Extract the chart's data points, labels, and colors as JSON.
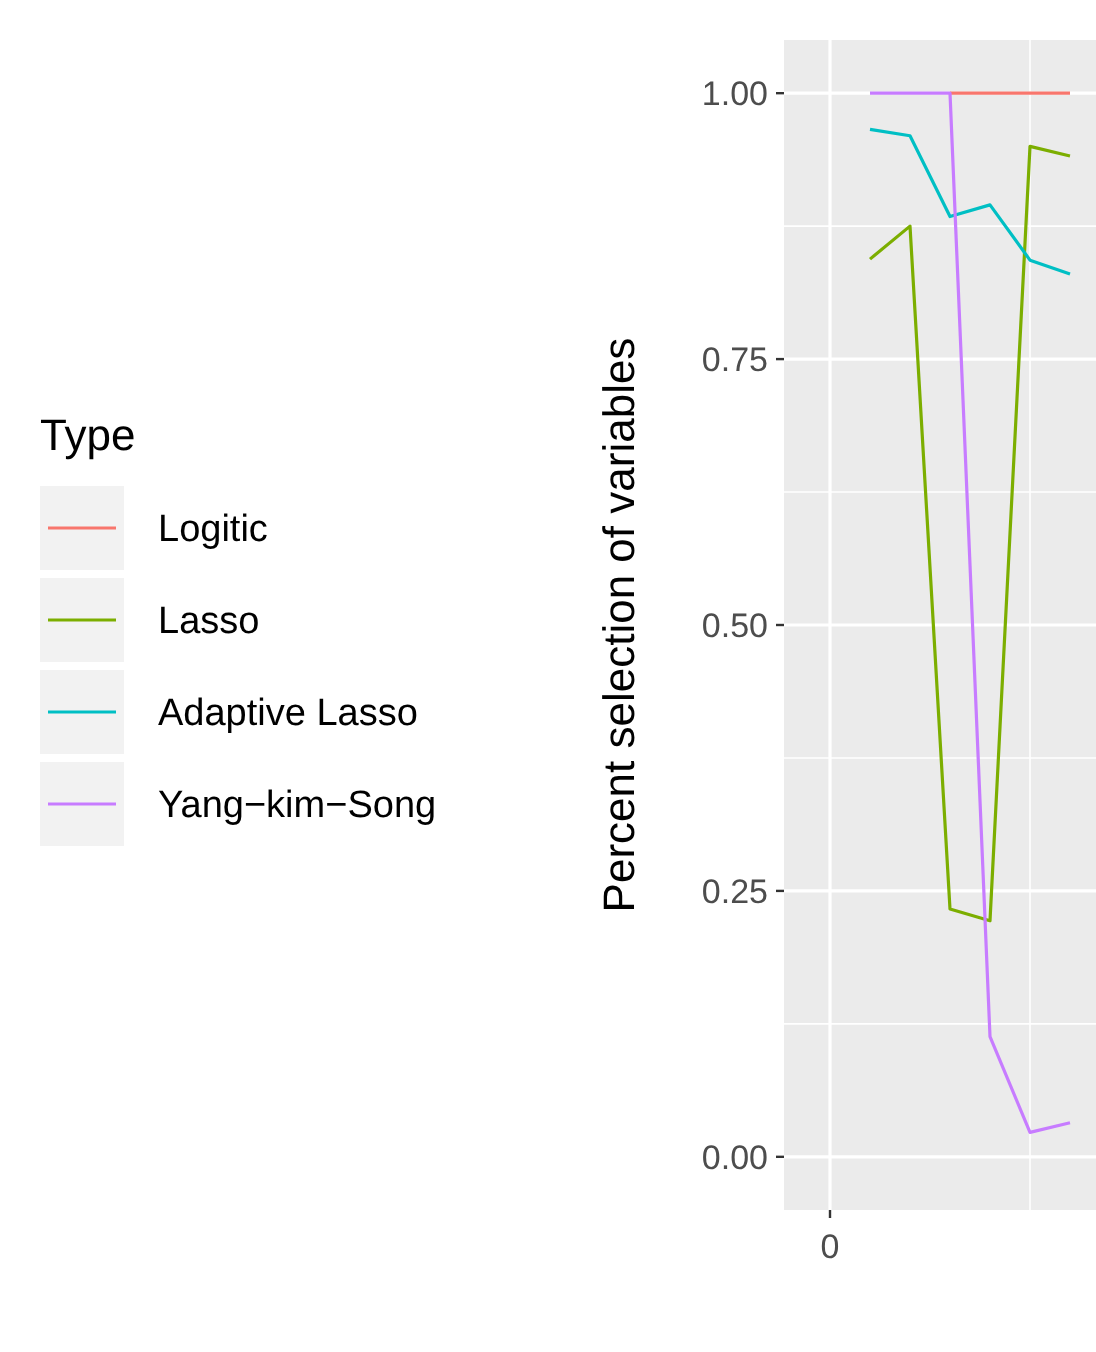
{
  "chart_data": {
    "type": "line",
    "ylabel": "Percent selection of variables",
    "legend_title": "Type",
    "categories": [
      null,
      null,
      null,
      null,
      null,
      null
    ],
    "annotations": [
      "0"
    ],
    "series": [
      {
        "name": "Logitic",
        "color": "#f8766d",
        "values": [
          null,
          null,
          1,
          1,
          1,
          1
        ]
      },
      {
        "name": "Lasso",
        "color": "#7cae00",
        "values": [
          0.844,
          0.875,
          0.233,
          0.222,
          0.95,
          0.941
        ]
      },
      {
        "name": "Adaptive Lasso",
        "color": "#00bfc4",
        "values": [
          0.966,
          0.96,
          0.884,
          0.895,
          0.843,
          0.83
        ]
      },
      {
        "name": "Yang−kim−Song",
        "color": "#c77cff",
        "values": [
          1,
          1,
          1,
          0.113,
          0.023,
          0.032
        ]
      }
    ],
    "ylim": [
      -0.05,
      1.05
    ],
    "yticks": [
      {
        "value": 0,
        "label": "0.00"
      },
      {
        "value": 0.25,
        "label": "0.25"
      },
      {
        "value": 0.5,
        "label": "0.50"
      },
      {
        "value": 0.75,
        "label": "0.75"
      },
      {
        "value": 1,
        "label": "1.00"
      }
    ],
    "grid": true,
    "legend": "left",
    "marker": "none",
    "line_style": "solid"
  }
}
